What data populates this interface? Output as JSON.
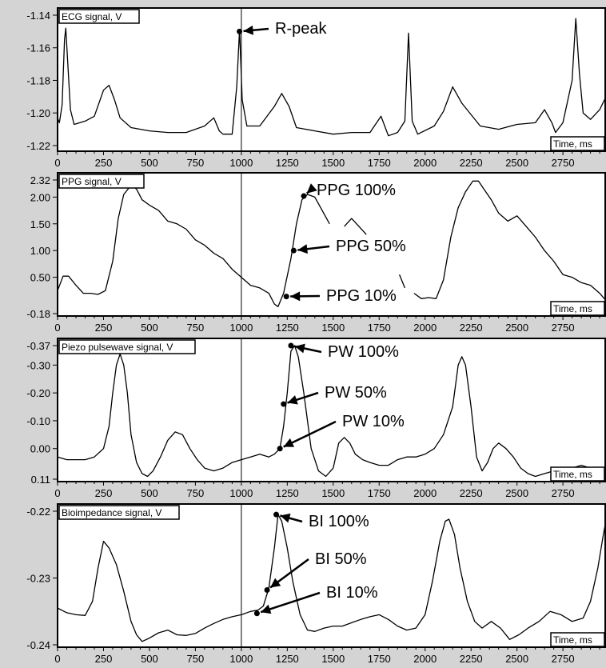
{
  "chart_data": [
    {
      "type": "line",
      "title": "ECG signal, V",
      "xlabel": "Time, ms",
      "xlim": [
        0,
        2980
      ],
      "ylim": [
        -1.222,
        -1.14
      ],
      "x_ticks": [
        "0",
        "250",
        "500",
        "750",
        "1000",
        "1250",
        "1500",
        "1750",
        "2000",
        "2250",
        "2500",
        "2750"
      ],
      "y_ticks": [
        {
          "value": -1.14,
          "label": "-1.14"
        },
        {
          "value": -1.16,
          "label": "-1.16"
        },
        {
          "value": -1.18,
          "label": "-1.18"
        },
        {
          "value": -1.2,
          "label": "-1.20"
        },
        {
          "value": -1.22,
          "label": "-1.22"
        }
      ],
      "series": [
        {
          "x": [
            0,
            10,
            25,
            38,
            45,
            55,
            70,
            90,
            150,
            200,
            250,
            280,
            310,
            340,
            400,
            500,
            600,
            700,
            800,
            850,
            880,
            900,
            950,
            975,
            990,
            1005,
            1030,
            1100,
            1180,
            1220,
            1260,
            1300,
            1400,
            1500,
            1600,
            1700,
            1760,
            1790,
            1800,
            1850,
            1890,
            1910,
            1930,
            1960,
            2050,
            2100,
            2150,
            2200,
            2300,
            2400,
            2500,
            2600,
            2650,
            2690,
            2710,
            2750,
            2800,
            2820,
            2840,
            2860,
            2900,
            2950,
            2980
          ],
          "y": [
            -1.203,
            -1.206,
            -1.195,
            -1.155,
            -1.148,
            -1.168,
            -1.198,
            -1.207,
            -1.205,
            -1.202,
            -1.186,
            -1.183,
            -1.192,
            -1.203,
            -1.209,
            -1.211,
            -1.212,
            -1.212,
            -1.208,
            -1.203,
            -1.211,
            -1.213,
            -1.213,
            -1.184,
            -1.149,
            -1.192,
            -1.208,
            -1.208,
            -1.196,
            -1.188,
            -1.196,
            -1.209,
            -1.211,
            -1.213,
            -1.212,
            -1.212,
            -1.202,
            -1.211,
            -1.214,
            -1.212,
            -1.205,
            -1.151,
            -1.205,
            -1.213,
            -1.208,
            -1.199,
            -1.184,
            -1.194,
            -1.208,
            -1.21,
            -1.207,
            -1.206,
            -1.198,
            -1.206,
            -1.212,
            -1.206,
            -1.18,
            -1.142,
            -1.176,
            -1.2,
            -1.204,
            -1.198,
            -1.191
          ]
        }
      ],
      "markers": [
        {
          "x": 990,
          "y": -1.15,
          "label": "R-peak"
        }
      ]
    },
    {
      "type": "line",
      "title": "PPG signal, V",
      "xlabel": "Time, ms",
      "xlim": [
        0,
        2980
      ],
      "ylim": [
        -0.18,
        2.32
      ],
      "x_ticks": [
        "0",
        "250",
        "500",
        "750",
        "1000",
        "1250",
        "1500",
        "1750",
        "2000",
        "2250",
        "2500",
        "2750"
      ],
      "y_ticks": [
        {
          "value": 2.32,
          "label": "2.32"
        },
        {
          "value": 2.0,
          "label": "2.00"
        },
        {
          "value": 1.5,
          "label": "1.50"
        },
        {
          "value": 1.0,
          "label": "1.00"
        },
        {
          "value": 0.5,
          "label": "0.50"
        },
        {
          "value": -0.18,
          "label": "-0.18"
        }
      ],
      "series": [
        {
          "x": [
            0,
            30,
            60,
            100,
            140,
            180,
            220,
            260,
            300,
            330,
            360,
            400,
            430,
            460,
            500,
            550,
            600,
            650,
            700,
            750,
            800,
            850,
            900,
            950,
            1000,
            1050,
            1100,
            1150,
            1180,
            1200,
            1230,
            1270,
            1300,
            1330,
            1360,
            1400,
            1440,
            1480,
            null,
            1560,
            1600,
            1640,
            1680,
            null,
            1860,
            1890,
            null,
            1940,
            1980,
            2020,
            2060,
            2100,
            2140,
            2180,
            2220,
            2260,
            2290,
            2320,
            2360,
            2400,
            2450,
            2500,
            2550,
            2600,
            2650,
            2700,
            2750,
            2800,
            2850,
            2900,
            2950,
            2980
          ],
          "y": [
            0.25,
            0.52,
            0.52,
            0.35,
            0.2,
            0.2,
            0.18,
            0.25,
            0.8,
            1.6,
            2.05,
            2.22,
            2.15,
            1.95,
            1.85,
            1.75,
            1.55,
            1.5,
            1.4,
            1.2,
            1.1,
            0.95,
            0.85,
            0.65,
            0.5,
            0.35,
            0.3,
            0.2,
            0.0,
            -0.05,
            0.2,
            0.85,
            1.5,
            1.95,
            2.05,
            2.0,
            1.75,
            1.5,
            null,
            1.45,
            1.6,
            1.45,
            1.3,
            null,
            0.55,
            0.3,
            null,
            0.2,
            0.1,
            0.12,
            0.1,
            0.45,
            1.25,
            1.8,
            2.1,
            2.3,
            2.3,
            2.15,
            1.95,
            1.7,
            1.55,
            1.65,
            1.45,
            1.25,
            1.0,
            0.8,
            0.55,
            0.5,
            0.4,
            0.35,
            0.2,
            0.08
          ]
        }
      ],
      "markers": [
        {
          "x": 1340,
          "y": 2.02,
          "label": "PPG 100%"
        },
        {
          "x": 1285,
          "y": 1.0,
          "label": "PPG 50%"
        },
        {
          "x": 1245,
          "y": 0.14,
          "label": "PPG 10%"
        }
      ]
    },
    {
      "type": "line",
      "title": "Piezo pulsewave signal, V",
      "xlabel": "Time, ms",
      "xlim": [
        0,
        2980
      ],
      "ylim": [
        0.11,
        -0.37
      ],
      "x_ticks": [
        "0",
        "250",
        "500",
        "750",
        "1000",
        "1250",
        "1500",
        "1750",
        "2000",
        "2250",
        "2500",
        "2750"
      ],
      "y_ticks": [
        {
          "value": -0.37,
          "label": "-0.37"
        },
        {
          "value": -0.3,
          "label": "-0.30"
        },
        {
          "value": -0.2,
          "label": "-0.20"
        },
        {
          "value": -0.1,
          "label": "-0.10"
        },
        {
          "value": 0.0,
          "label": "0.00"
        },
        {
          "value": 0.11,
          "label": "0.11"
        }
      ],
      "series": [
        {
          "x": [
            0,
            50,
            100,
            150,
            200,
            250,
            280,
            300,
            320,
            340,
            360,
            380,
            400,
            430,
            460,
            490,
            520,
            560,
            600,
            640,
            680,
            720,
            760,
            800,
            850,
            900,
            950,
            1000,
            1050,
            1100,
            1150,
            1180,
            1210,
            1230,
            1250,
            1270,
            1290,
            1310,
            1340,
            1380,
            1420,
            1460,
            1500,
            1530,
            1560,
            1590,
            1620,
            1660,
            1700,
            1750,
            1800,
            1850,
            1900,
            1950,
            2000,
            2050,
            2100,
            2150,
            2180,
            2200,
            2220,
            2250,
            2280,
            2310,
            2340,
            2370,
            2400,
            2440,
            2480,
            2520,
            2560,
            2600,
            2650,
            2700,
            2750,
            2800,
            2850,
            2900,
            2950,
            2980
          ],
          "y": [
            0.03,
            0.04,
            0.04,
            0.04,
            0.03,
            0.0,
            -0.08,
            -0.2,
            -0.3,
            -0.34,
            -0.3,
            -0.2,
            -0.05,
            0.05,
            0.09,
            0.1,
            0.08,
            0.03,
            -0.03,
            -0.06,
            -0.05,
            0.0,
            0.04,
            0.07,
            0.08,
            0.07,
            0.05,
            0.04,
            0.03,
            0.02,
            0.03,
            0.02,
            0.0,
            -0.08,
            -0.2,
            -0.35,
            -0.37,
            -0.33,
            -0.2,
            0.0,
            0.08,
            0.1,
            0.07,
            -0.02,
            -0.04,
            -0.02,
            0.02,
            0.04,
            0.05,
            0.06,
            0.06,
            0.04,
            0.03,
            0.03,
            0.02,
            0.0,
            -0.05,
            -0.15,
            -0.3,
            -0.33,
            -0.3,
            -0.15,
            0.03,
            0.08,
            0.05,
            0.0,
            -0.02,
            0.0,
            0.03,
            0.07,
            0.09,
            0.1,
            0.09,
            0.08,
            0.07,
            0.07,
            0.06,
            0.07,
            0.08,
            0.08
          ]
        }
      ],
      "markers": [
        {
          "x": 1270,
          "y": -0.37,
          "label": "PW 100%"
        },
        {
          "x": 1230,
          "y": -0.16,
          "label": "PW 50%"
        },
        {
          "x": 1210,
          "y": 0.0,
          "label": "PW 10%"
        }
      ]
    },
    {
      "type": "line",
      "title": "Bioimpedance signal, V",
      "xlabel": "Time, ms",
      "xlim": [
        0,
        2980
      ],
      "ylim": [
        -0.24,
        -0.22
      ],
      "x_ticks": [
        "0",
        "250",
        "500",
        "750",
        "1000",
        "1250",
        "1500",
        "1750",
        "2000",
        "2250",
        "2500",
        "2750"
      ],
      "y_ticks": [
        {
          "value": -0.22,
          "label": "-0.22"
        },
        {
          "value": -0.23,
          "label": "-0.23"
        },
        {
          "value": -0.24,
          "label": "-0.24"
        }
      ],
      "series": [
        {
          "x": [
            0,
            50,
            100,
            150,
            190,
            220,
            250,
            280,
            320,
            360,
            400,
            430,
            460,
            500,
            550,
            600,
            650,
            700,
            750,
            800,
            850,
            900,
            950,
            1000,
            1050,
            1090,
            1120,
            1150,
            1180,
            1200,
            1220,
            1250,
            1280,
            1320,
            1360,
            1400,
            1450,
            1500,
            1550,
            1600,
            1650,
            1700,
            1750,
            1800,
            1850,
            1900,
            1950,
            2000,
            2040,
            2080,
            2110,
            2130,
            2160,
            2190,
            2230,
            2270,
            2310,
            2360,
            2410,
            2460,
            2510,
            2560,
            2620,
            2680,
            2740,
            2800,
            2860,
            2900,
            2940,
            2970,
            2980
          ],
          "y": [
            -0.2345,
            -0.2352,
            -0.2355,
            -0.2356,
            -0.2335,
            -0.2285,
            -0.2245,
            -0.2255,
            -0.228,
            -0.232,
            -0.2365,
            -0.2385,
            -0.2395,
            -0.239,
            -0.2382,
            -0.2378,
            -0.2385,
            -0.2386,
            -0.2383,
            -0.2375,
            -0.2368,
            -0.2362,
            -0.2358,
            -0.2355,
            -0.235,
            -0.2348,
            -0.2342,
            -0.2315,
            -0.2255,
            -0.2205,
            -0.2215,
            -0.2255,
            -0.2305,
            -0.2355,
            -0.2378,
            -0.238,
            -0.2375,
            -0.2372,
            -0.2372,
            -0.2367,
            -0.2362,
            -0.2358,
            -0.2355,
            -0.2362,
            -0.2372,
            -0.2378,
            -0.2375,
            -0.2355,
            -0.2305,
            -0.2245,
            -0.2215,
            -0.2212,
            -0.2235,
            -0.2285,
            -0.2335,
            -0.2365,
            -0.2375,
            -0.2365,
            -0.2375,
            -0.2392,
            -0.2385,
            -0.2375,
            -0.2365,
            -0.235,
            -0.2355,
            -0.2365,
            -0.236,
            -0.2335,
            -0.2285,
            -0.2235,
            -0.222
          ]
        }
      ],
      "markers": [
        {
          "x": 1190,
          "y": -0.2205,
          "label": "BI 100%"
        },
        {
          "x": 1140,
          "y": -0.2318,
          "label": "BI 50%"
        },
        {
          "x": 1085,
          "y": -0.2353,
          "label": "BI 10%"
        }
      ]
    }
  ]
}
